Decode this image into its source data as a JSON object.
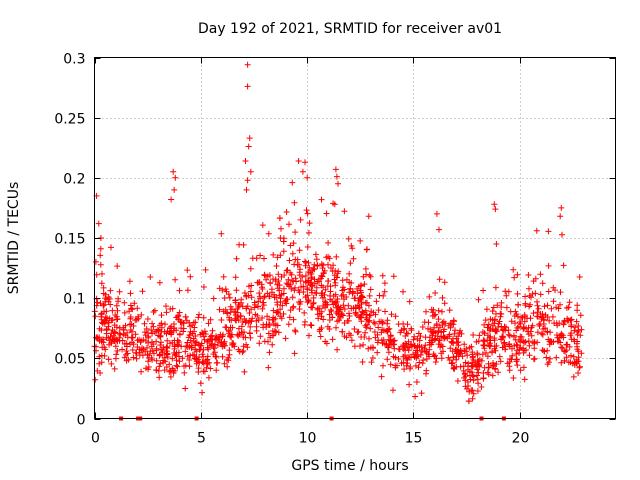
{
  "chart_data": {
    "type": "scatter",
    "title": "Day 192 of 2021, SRMTID for receiver av01",
    "xlabel": "GPS time / hours",
    "ylabel": "SRMTID / TECUs",
    "xlim": [
      0,
      24.5
    ],
    "ylim": [
      0,
      0.3
    ],
    "xticks": [
      0,
      5,
      10,
      15,
      20
    ],
    "xtick_labels": [
      "0",
      "5",
      "10",
      "15",
      "20"
    ],
    "yticks": [
      0,
      0.05,
      0.1,
      0.15,
      0.2,
      0.25,
      0.3
    ],
    "ytick_labels": [
      "0",
      "0.05",
      "0.1",
      "0.15",
      "0.2",
      "0.25",
      "0.3"
    ],
    "grid": true,
    "marker": "plus",
    "color": "#ff0000",
    "x_data_range": [
      0,
      22.9
    ],
    "zero_value_markers_x": [
      1.25,
      2.05,
      2.15,
      4.8,
      11.15,
      18.2,
      19.25
    ],
    "series_profile": {
      "name": "SRMTID",
      "x": [
        0,
        0.5,
        1.0,
        1.5,
        2.0,
        2.5,
        3.0,
        3.5,
        4.0,
        4.5,
        5.0,
        5.5,
        6.0,
        6.5,
        7.0,
        7.5,
        8.0,
        8.5,
        9.0,
        9.5,
        10.0,
        10.5,
        11.0,
        11.5,
        12.0,
        12.5,
        13.0,
        13.5,
        14.0,
        14.5,
        15.0,
        15.5,
        16.0,
        16.5,
        17.0,
        17.5,
        18.0,
        18.5,
        19.0,
        19.5,
        20.0,
        20.5,
        21.0,
        21.5,
        22.0,
        22.5,
        22.9
      ],
      "median": [
        0.07,
        0.08,
        0.07,
        0.075,
        0.07,
        0.06,
        0.06,
        0.065,
        0.07,
        0.06,
        0.055,
        0.06,
        0.07,
        0.08,
        0.085,
        0.09,
        0.095,
        0.1,
        0.11,
        0.115,
        0.11,
        0.105,
        0.1,
        0.095,
        0.1,
        0.09,
        0.08,
        0.07,
        0.065,
        0.06,
        0.055,
        0.06,
        0.065,
        0.07,
        0.065,
        0.035,
        0.045,
        0.06,
        0.07,
        0.065,
        0.07,
        0.075,
        0.075,
        0.075,
        0.07,
        0.065,
        0.055
      ],
      "spread": [
        0.035,
        0.03,
        0.03,
        0.025,
        0.025,
        0.025,
        0.025,
        0.03,
        0.03,
        0.025,
        0.025,
        0.025,
        0.03,
        0.03,
        0.035,
        0.035,
        0.035,
        0.035,
        0.035,
        0.035,
        0.035,
        0.035,
        0.035,
        0.03,
        0.03,
        0.03,
        0.03,
        0.025,
        0.025,
        0.025,
        0.025,
        0.025,
        0.025,
        0.025,
        0.025,
        0.02,
        0.025,
        0.025,
        0.03,
        0.03,
        0.03,
        0.03,
        0.03,
        0.03,
        0.03,
        0.03,
        0.025
      ],
      "sample_count": 1800,
      "outliers": [
        {
          "x": 0.1,
          "y": 0.185
        },
        {
          "x": 0.2,
          "y": 0.162
        },
        {
          "x": 0.3,
          "y": 0.15
        },
        {
          "x": 3.7,
          "y": 0.205
        },
        {
          "x": 3.75,
          "y": 0.19
        },
        {
          "x": 3.8,
          "y": 0.2
        },
        {
          "x": 3.6,
          "y": 0.182
        },
        {
          "x": 7.2,
          "y": 0.294
        },
        {
          "x": 7.2,
          "y": 0.276
        },
        {
          "x": 7.3,
          "y": 0.233
        },
        {
          "x": 7.25,
          "y": 0.226
        },
        {
          "x": 7.1,
          "y": 0.214
        },
        {
          "x": 7.35,
          "y": 0.205
        },
        {
          "x": 7.2,
          "y": 0.198
        },
        {
          "x": 7.15,
          "y": 0.19
        },
        {
          "x": 9.6,
          "y": 0.214
        },
        {
          "x": 9.9,
          "y": 0.213
        },
        {
          "x": 9.8,
          "y": 0.205
        },
        {
          "x": 10.0,
          "y": 0.2
        },
        {
          "x": 9.3,
          "y": 0.196
        },
        {
          "x": 11.35,
          "y": 0.207
        },
        {
          "x": 11.4,
          "y": 0.201
        },
        {
          "x": 11.45,
          "y": 0.195
        },
        {
          "x": 11.3,
          "y": 0.178
        },
        {
          "x": 12.9,
          "y": 0.168
        },
        {
          "x": 16.1,
          "y": 0.17
        },
        {
          "x": 16.2,
          "y": 0.157
        },
        {
          "x": 18.8,
          "y": 0.178
        },
        {
          "x": 18.85,
          "y": 0.174
        },
        {
          "x": 18.9,
          "y": 0.145
        },
        {
          "x": 21.95,
          "y": 0.175
        },
        {
          "x": 21.9,
          "y": 0.168
        },
        {
          "x": 20.8,
          "y": 0.156
        }
      ]
    }
  }
}
